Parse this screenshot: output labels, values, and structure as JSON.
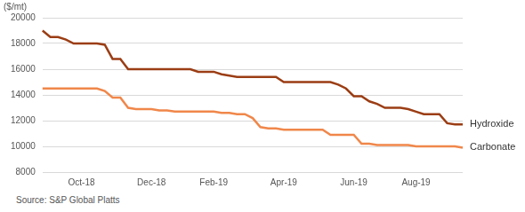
{
  "chart_data": {
    "type": "line",
    "ylabel": "($/mt)",
    "source": "Source: S&P Global Platts",
    "categories": [
      null,
      null,
      null,
      null,
      null,
      "Oct-18",
      null,
      null,
      null,
      null,
      null,
      null,
      null,
      null,
      "Dec-18",
      null,
      null,
      null,
      null,
      null,
      null,
      null,
      "Feb-19",
      null,
      null,
      null,
      null,
      null,
      null,
      null,
      null,
      "Apr-19",
      null,
      null,
      null,
      null,
      null,
      null,
      null,
      null,
      "Jun-19",
      null,
      null,
      null,
      null,
      null,
      null,
      null,
      "Aug-19",
      null,
      null,
      null,
      null,
      null,
      null
    ],
    "series": [
      {
        "name": "Hydroxide",
        "color": "#9b3d14",
        "values": [
          19000,
          18500,
          18500,
          18300,
          18000,
          18000,
          18000,
          18000,
          17900,
          16800,
          16800,
          16000,
          16000,
          16000,
          16000,
          16000,
          16000,
          16000,
          16000,
          16000,
          15800,
          15800,
          15800,
          15600,
          15500,
          15400,
          15400,
          15400,
          15400,
          15400,
          15400,
          15000,
          15000,
          15000,
          15000,
          15000,
          15000,
          15000,
          14800,
          14500,
          13900,
          13900,
          13500,
          13300,
          13000,
          13000,
          13000,
          12900,
          12700,
          12500,
          12500,
          12500,
          11800,
          11700,
          11700
        ]
      },
      {
        "name": "Carbonate",
        "color": "#f0874a",
        "values": [
          14500,
          14500,
          14500,
          14500,
          14500,
          14500,
          14500,
          14500,
          14300,
          13800,
          13800,
          13000,
          12900,
          12900,
          12900,
          12800,
          12800,
          12700,
          12700,
          12700,
          12700,
          12700,
          12700,
          12600,
          12600,
          12500,
          12500,
          12200,
          11500,
          11400,
          11400,
          11300,
          11300,
          11300,
          11300,
          11300,
          11300,
          10900,
          10900,
          10900,
          10900,
          10200,
          10200,
          10100,
          10100,
          10100,
          10100,
          10100,
          10000,
          10000,
          10000,
          10000,
          10000,
          10000,
          9900
        ]
      }
    ],
    "ylim": [
      8000,
      20000
    ],
    "yticks": [
      8000,
      10000,
      12000,
      14000,
      16000,
      18000,
      20000
    ],
    "grid": true
  }
}
